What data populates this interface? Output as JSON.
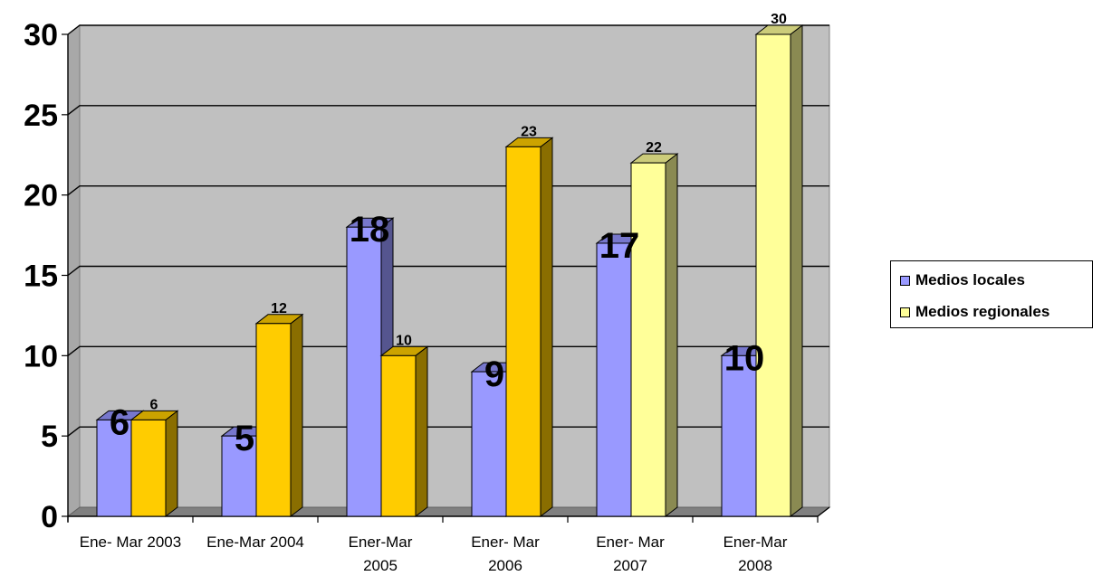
{
  "chart_data": {
    "type": "bar",
    "categories": [
      "Ene- Mar 2003",
      "Ene-Mar 2004",
      "Ener-Mar 2005",
      "Ener- Mar 2006",
      "Ener- Mar 2007",
      "Ener-Mar 2008"
    ],
    "category_lines": [
      [
        "Ene- Mar 2003"
      ],
      [
        "Ene-Mar 2004"
      ],
      [
        "Ener-Mar",
        "2005"
      ],
      [
        "Ener- Mar",
        "2006"
      ],
      [
        "Ener- Mar",
        "2007"
      ],
      [
        "Ener-Mar",
        "2008"
      ]
    ],
    "series": [
      {
        "name": "Medios locales",
        "values": [
          6,
          5,
          18,
          9,
          17,
          10
        ]
      },
      {
        "name": "Medios regionales",
        "values": [
          6,
          12,
          10,
          23,
          22,
          30
        ]
      }
    ],
    "ylim": [
      0,
      30
    ],
    "yticks": [
      0,
      5,
      10,
      15,
      20,
      25,
      30
    ],
    "grid": true,
    "legend_position": "right",
    "colors": {
      "locales_front": "#9999FF",
      "locales_side": "#55558F",
      "locales_top": "#7777CC",
      "regionales_2003_2006_front": "#FFCC00",
      "regionales_2003_2006_side": "#8A6E00",
      "regionales_2003_2006_top": "#CCA300",
      "regionales_2007_2008_front": "#FFFF99",
      "regionales_2007_2008_side": "#8A8A52",
      "regionales_2007_2008_top": "#CCCC7A",
      "plot_back_wall": "#C0C0C0",
      "floor": "#808080"
    }
  },
  "legend": {
    "items": [
      {
        "label": "Medios locales",
        "color": "#9999FF"
      },
      {
        "label": "Medios regionales",
        "color": "#FFFF99"
      }
    ]
  }
}
